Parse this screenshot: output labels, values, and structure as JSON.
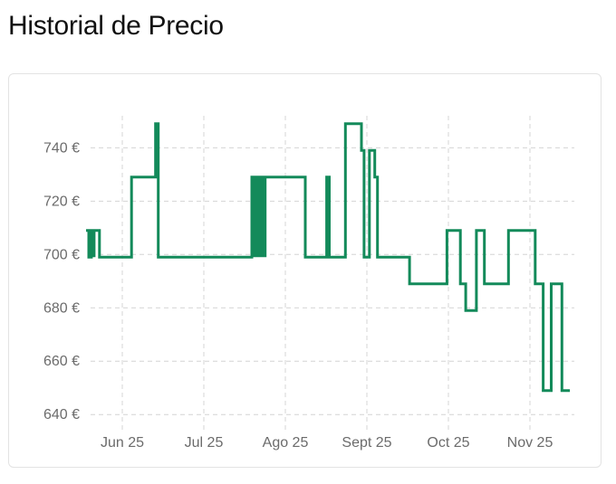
{
  "header": {
    "title": "Historial de Precio"
  },
  "chart_data": {
    "type": "line",
    "title": "",
    "xlabel": "",
    "ylabel": "",
    "grid": true,
    "ylim": [
      636,
      752
    ],
    "y_ticks": [
      {
        "value": 640,
        "label": "640 €"
      },
      {
        "value": 660,
        "label": "660 €"
      },
      {
        "value": 680,
        "label": "680 €"
      },
      {
        "value": 700,
        "label": "700 €"
      },
      {
        "value": 720,
        "label": "720 €"
      },
      {
        "value": 740,
        "label": "740 €"
      }
    ],
    "x_ticks": [
      "Jun 25",
      "Jul 25",
      "Ago 25",
      "Sept 25",
      "Oct 25",
      "Nov 25"
    ],
    "x_range": [
      "2025-05-20",
      "2025-11-20"
    ],
    "line_color": "#138a5a",
    "series": [
      {
        "interpolation": "step",
        "points": [
          [
            "2025-05-20",
            709
          ],
          [
            "2025-05-21",
            699
          ],
          [
            "2025-05-22",
            709
          ],
          [
            "2025-05-23",
            699
          ],
          [
            "2025-05-23",
            709
          ],
          [
            "2025-05-25",
            709
          ],
          [
            "2025-05-25",
            699
          ],
          [
            "2025-06-06",
            699
          ],
          [
            "2025-06-06",
            729
          ],
          [
            "2025-06-15",
            729
          ],
          [
            "2025-06-15",
            749
          ],
          [
            "2025-06-16",
            749
          ],
          [
            "2025-06-16",
            699
          ],
          [
            "2025-07-21",
            699
          ],
          [
            "2025-07-21",
            729
          ],
          [
            "2025-07-22",
            699
          ],
          [
            "2025-07-22",
            729
          ],
          [
            "2025-07-23",
            699
          ],
          [
            "2025-07-23",
            729
          ],
          [
            "2025-07-24",
            699
          ],
          [
            "2025-07-24",
            729
          ],
          [
            "2025-07-25",
            699
          ],
          [
            "2025-07-25",
            729
          ],
          [
            "2025-07-26",
            699
          ],
          [
            "2025-07-26",
            729
          ],
          [
            "2025-08-10",
            729
          ],
          [
            "2025-08-10",
            699
          ],
          [
            "2025-08-18",
            699
          ],
          [
            "2025-08-18",
            729
          ],
          [
            "2025-08-19",
            729
          ],
          [
            "2025-08-19",
            699
          ],
          [
            "2025-08-25",
            699
          ],
          [
            "2025-08-25",
            749
          ],
          [
            "2025-08-31",
            749
          ],
          [
            "2025-08-31",
            739
          ],
          [
            "2025-09-01",
            739
          ],
          [
            "2025-09-01",
            699
          ],
          [
            "2025-09-03",
            699
          ],
          [
            "2025-09-03",
            739
          ],
          [
            "2025-09-05",
            739
          ],
          [
            "2025-09-05",
            729
          ],
          [
            "2025-09-06",
            729
          ],
          [
            "2025-09-06",
            699
          ],
          [
            "2025-09-18",
            699
          ],
          [
            "2025-09-18",
            689
          ],
          [
            "2025-10-02",
            689
          ],
          [
            "2025-10-02",
            709
          ],
          [
            "2025-10-07",
            709
          ],
          [
            "2025-10-07",
            689
          ],
          [
            "2025-10-09",
            689
          ],
          [
            "2025-10-09",
            679
          ],
          [
            "2025-10-13",
            679
          ],
          [
            "2025-10-13",
            709
          ],
          [
            "2025-10-16",
            709
          ],
          [
            "2025-10-16",
            689
          ],
          [
            "2025-10-25",
            689
          ],
          [
            "2025-10-25",
            709
          ],
          [
            "2025-11-04",
            709
          ],
          [
            "2025-11-04",
            689
          ],
          [
            "2025-11-07",
            689
          ],
          [
            "2025-11-07",
            649
          ],
          [
            "2025-11-10",
            649
          ],
          [
            "2025-11-10",
            689
          ],
          [
            "2025-11-14",
            689
          ],
          [
            "2025-11-14",
            649
          ],
          [
            "2025-11-17",
            649
          ]
        ]
      }
    ]
  }
}
